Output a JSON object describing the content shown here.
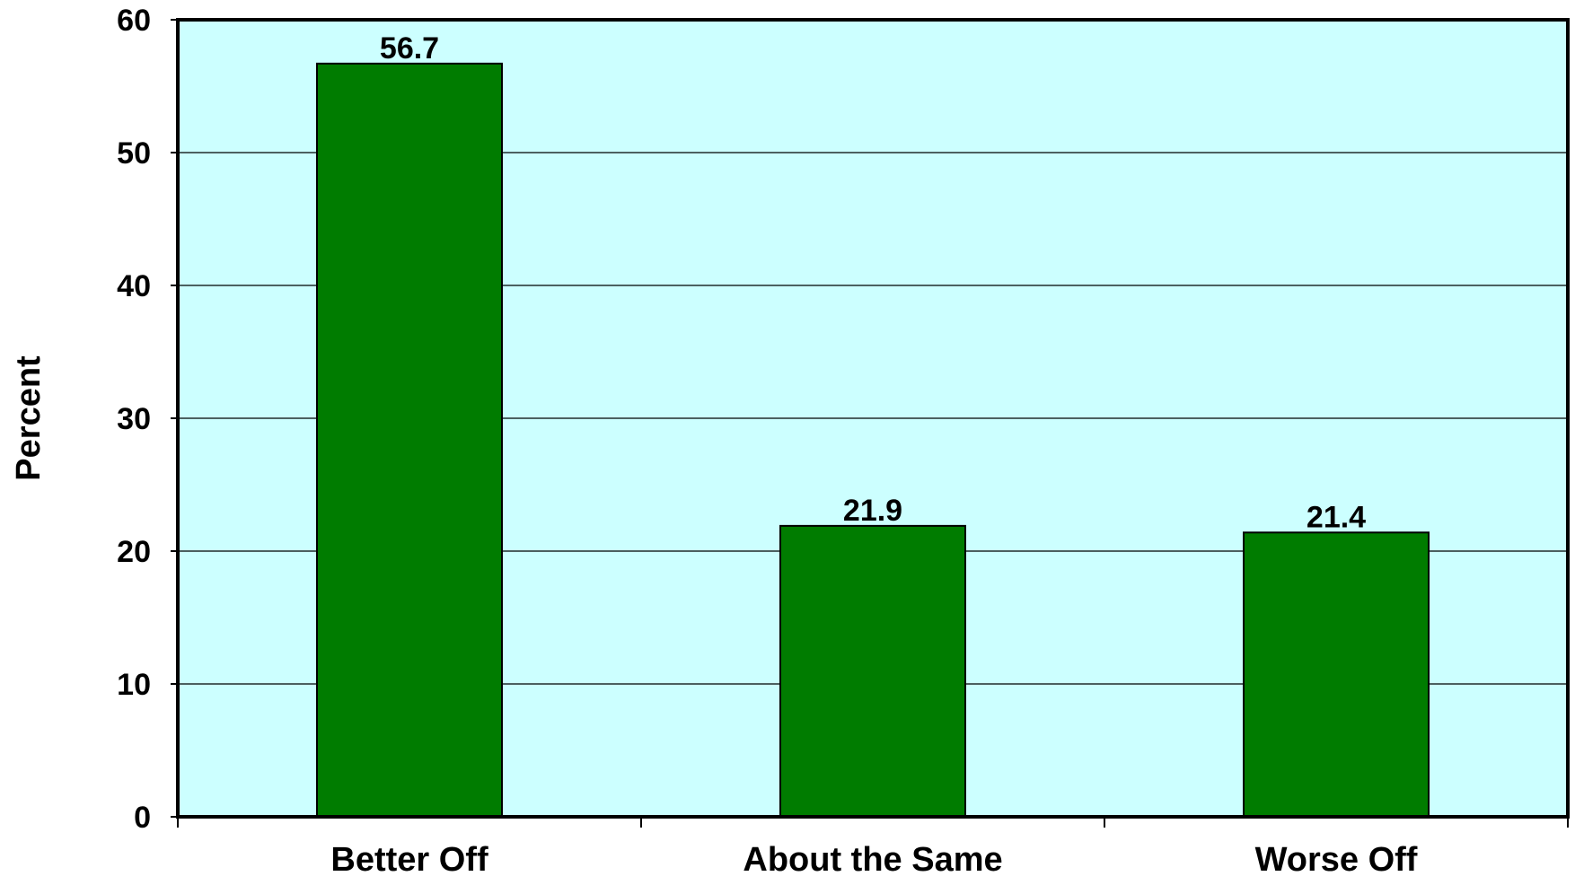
{
  "colors": {
    "plot_background": "#ccffff",
    "bar_fill": "#007c00",
    "bar_stroke": "#000000",
    "gridline": "#000000",
    "axis": "#000000"
  },
  "chart_data": {
    "type": "bar",
    "title": "",
    "xlabel": "",
    "ylabel": "Percent",
    "categories": [
      "Better Off",
      "About the Same",
      "Worse Off"
    ],
    "values": [
      56.7,
      21.9,
      21.4
    ],
    "data_labels": [
      "56.7",
      "21.9",
      "21.4"
    ],
    "ylim": [
      0,
      60
    ],
    "yticks": [
      0,
      10,
      20,
      30,
      40,
      50,
      60
    ],
    "grid": true,
    "legend": "none"
  }
}
